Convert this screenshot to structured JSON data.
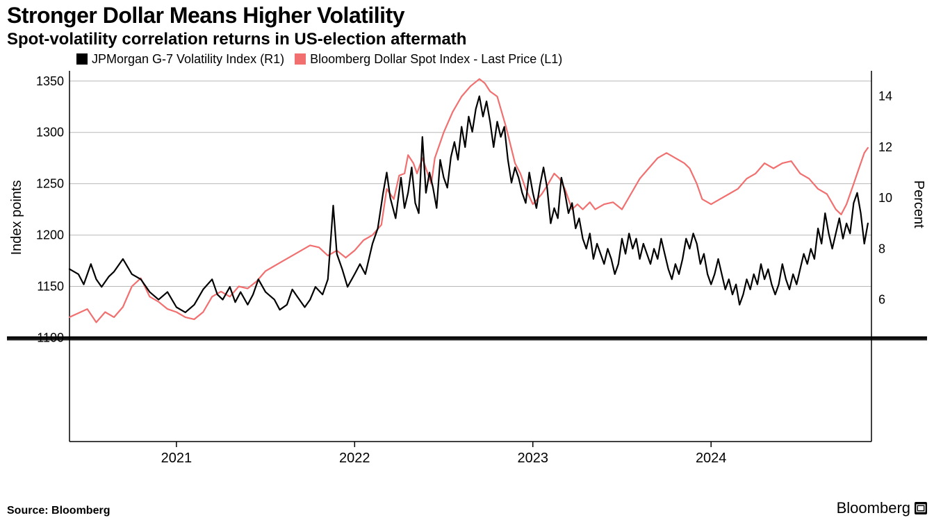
{
  "title": "Stronger Dollar Means Higher Volatility",
  "subtitle": "Spot-volatility correlation returns in US-election aftermath",
  "source": "Source: Bloomberg",
  "brand": "Bloomberg",
  "legend": {
    "series1": {
      "label": "JPMorgan G-7 Volatility Index (R1)",
      "color": "#000000"
    },
    "series2": {
      "label": "Bloomberg Dollar Spot Index - Last Price (L1)",
      "color": "#f26f6f"
    }
  },
  "chart": {
    "type": "line",
    "background_color": "#ffffff",
    "grid_color": "#b8b8b8",
    "divider_color": "#000000",
    "axis_line_color": "#000000",
    "axis_label_color": "#000000",
    "left_axis": {
      "label": "Index points",
      "min": 1100,
      "max": 1360,
      "ticks": [
        1100,
        1150,
        1200,
        1250,
        1300,
        1350
      ],
      "label_fontsize": 20,
      "tick_fontsize": 18
    },
    "right_axis": {
      "label": "Percent",
      "min": 4.5,
      "max": 15,
      "ticks": [
        6,
        8,
        10,
        12,
        14
      ],
      "label_fontsize": 20,
      "tick_fontsize": 18
    },
    "x_axis": {
      "min": 2020.4,
      "max": 2024.9,
      "ticks": [
        2021,
        2022,
        2023,
        2024
      ],
      "tick_fontsize": 20
    },
    "line_width": 2.2,
    "series_l1": {
      "name": "Bloomberg Dollar Spot Index",
      "color": "#f26f6f",
      "axis": "left",
      "points": [
        [
          2020.4,
          1120
        ],
        [
          2020.5,
          1128
        ],
        [
          2020.55,
          1115
        ],
        [
          2020.6,
          1125
        ],
        [
          2020.65,
          1120
        ],
        [
          2020.7,
          1130
        ],
        [
          2020.75,
          1150
        ],
        [
          2020.8,
          1158
        ],
        [
          2020.85,
          1140
        ],
        [
          2020.9,
          1135
        ],
        [
          2020.95,
          1128
        ],
        [
          2021.0,
          1125
        ],
        [
          2021.05,
          1120
        ],
        [
          2021.1,
          1118
        ],
        [
          2021.15,
          1125
        ],
        [
          2021.2,
          1140
        ],
        [
          2021.25,
          1145
        ],
        [
          2021.3,
          1140
        ],
        [
          2021.35,
          1150
        ],
        [
          2021.4,
          1148
        ],
        [
          2021.45,
          1155
        ],
        [
          2021.5,
          1165
        ],
        [
          2021.55,
          1170
        ],
        [
          2021.6,
          1175
        ],
        [
          2021.65,
          1180
        ],
        [
          2021.7,
          1185
        ],
        [
          2021.75,
          1190
        ],
        [
          2021.8,
          1188
        ],
        [
          2021.85,
          1180
        ],
        [
          2021.9,
          1185
        ],
        [
          2021.95,
          1178
        ],
        [
          2022.0,
          1185
        ],
        [
          2022.05,
          1195
        ],
        [
          2022.1,
          1200
        ],
        [
          2022.15,
          1210
        ],
        [
          2022.18,
          1245
        ],
        [
          2022.22,
          1235
        ],
        [
          2022.25,
          1258
        ],
        [
          2022.28,
          1260
        ],
        [
          2022.3,
          1278
        ],
        [
          2022.33,
          1270
        ],
        [
          2022.35,
          1260
        ],
        [
          2022.38,
          1275
        ],
        [
          2022.4,
          1265
        ],
        [
          2022.43,
          1250
        ],
        [
          2022.45,
          1275
        ],
        [
          2022.48,
          1290
        ],
        [
          2022.5,
          1300
        ],
        [
          2022.55,
          1320
        ],
        [
          2022.6,
          1335
        ],
        [
          2022.65,
          1345
        ],
        [
          2022.7,
          1352
        ],
        [
          2022.73,
          1348
        ],
        [
          2022.76,
          1340
        ],
        [
          2022.8,
          1335
        ],
        [
          2022.85,
          1305
        ],
        [
          2022.9,
          1270
        ],
        [
          2022.93,
          1260
        ],
        [
          2022.96,
          1245
        ],
        [
          2023.0,
          1230
        ],
        [
          2023.05,
          1240
        ],
        [
          2023.08,
          1248
        ],
        [
          2023.12,
          1260
        ],
        [
          2023.15,
          1255
        ],
        [
          2023.18,
          1245
        ],
        [
          2023.22,
          1225
        ],
        [
          2023.25,
          1230
        ],
        [
          2023.28,
          1225
        ],
        [
          2023.32,
          1232
        ],
        [
          2023.35,
          1225
        ],
        [
          2023.4,
          1230
        ],
        [
          2023.45,
          1232
        ],
        [
          2023.5,
          1225
        ],
        [
          2023.55,
          1240
        ],
        [
          2023.6,
          1255
        ],
        [
          2023.65,
          1265
        ],
        [
          2023.7,
          1275
        ],
        [
          2023.75,
          1280
        ],
        [
          2023.8,
          1275
        ],
        [
          2023.85,
          1270
        ],
        [
          2023.88,
          1265
        ],
        [
          2023.92,
          1250
        ],
        [
          2023.95,
          1235
        ],
        [
          2024.0,
          1230
        ],
        [
          2024.05,
          1235
        ],
        [
          2024.1,
          1240
        ],
        [
          2024.15,
          1245
        ],
        [
          2024.2,
          1255
        ],
        [
          2024.25,
          1260
        ],
        [
          2024.3,
          1270
        ],
        [
          2024.35,
          1265
        ],
        [
          2024.4,
          1270
        ],
        [
          2024.45,
          1272
        ],
        [
          2024.5,
          1260
        ],
        [
          2024.55,
          1255
        ],
        [
          2024.6,
          1245
        ],
        [
          2024.65,
          1240
        ],
        [
          2024.7,
          1225
        ],
        [
          2024.73,
          1220
        ],
        [
          2024.76,
          1230
        ],
        [
          2024.8,
          1250
        ],
        [
          2024.83,
          1265
        ],
        [
          2024.86,
          1280
        ],
        [
          2024.88,
          1285
        ]
      ]
    },
    "series_r1": {
      "name": "JPMorgan G-7 Volatility Index",
      "color": "#000000",
      "axis": "right",
      "points": [
        [
          2020.4,
          7.2
        ],
        [
          2020.45,
          7.0
        ],
        [
          2020.48,
          6.6
        ],
        [
          2020.52,
          7.4
        ],
        [
          2020.55,
          6.8
        ],
        [
          2020.58,
          6.5
        ],
        [
          2020.62,
          6.9
        ],
        [
          2020.65,
          7.1
        ],
        [
          2020.7,
          7.6
        ],
        [
          2020.75,
          7.0
        ],
        [
          2020.8,
          6.8
        ],
        [
          2020.85,
          6.3
        ],
        [
          2020.9,
          6.0
        ],
        [
          2020.95,
          6.3
        ],
        [
          2021.0,
          5.7
        ],
        [
          2021.05,
          5.5
        ],
        [
          2021.1,
          5.8
        ],
        [
          2021.15,
          6.4
        ],
        [
          2021.2,
          6.8
        ],
        [
          2021.23,
          6.2
        ],
        [
          2021.26,
          6.0
        ],
        [
          2021.3,
          6.5
        ],
        [
          2021.33,
          5.9
        ],
        [
          2021.36,
          6.3
        ],
        [
          2021.4,
          5.8
        ],
        [
          2021.43,
          6.2
        ],
        [
          2021.46,
          6.8
        ],
        [
          2021.5,
          6.3
        ],
        [
          2021.55,
          6.0
        ],
        [
          2021.58,
          5.6
        ],
        [
          2021.62,
          5.8
        ],
        [
          2021.65,
          6.4
        ],
        [
          2021.68,
          6.1
        ],
        [
          2021.72,
          5.7
        ],
        [
          2021.75,
          6.0
        ],
        [
          2021.78,
          6.5
        ],
        [
          2021.82,
          6.2
        ],
        [
          2021.85,
          6.8
        ],
        [
          2021.88,
          9.7
        ],
        [
          2021.9,
          7.8
        ],
        [
          2021.93,
          7.2
        ],
        [
          2021.96,
          6.5
        ],
        [
          2022.0,
          7.0
        ],
        [
          2022.03,
          7.4
        ],
        [
          2022.06,
          7.0
        ],
        [
          2022.1,
          8.2
        ],
        [
          2022.13,
          8.8
        ],
        [
          2022.16,
          10.2
        ],
        [
          2022.18,
          11.0
        ],
        [
          2022.2,
          10.0
        ],
        [
          2022.23,
          9.2
        ],
        [
          2022.26,
          10.8
        ],
        [
          2022.28,
          9.6
        ],
        [
          2022.3,
          10.2
        ],
        [
          2022.32,
          11.2
        ],
        [
          2022.34,
          9.8
        ],
        [
          2022.36,
          9.4
        ],
        [
          2022.38,
          12.4
        ],
        [
          2022.4,
          10.2
        ],
        [
          2022.42,
          11.0
        ],
        [
          2022.44,
          10.4
        ],
        [
          2022.46,
          9.6
        ],
        [
          2022.48,
          11.5
        ],
        [
          2022.5,
          10.8
        ],
        [
          2022.52,
          10.4
        ],
        [
          2022.54,
          11.6
        ],
        [
          2022.56,
          12.2
        ],
        [
          2022.58,
          11.5
        ],
        [
          2022.6,
          12.8
        ],
        [
          2022.62,
          12.0
        ],
        [
          2022.64,
          13.2
        ],
        [
          2022.66,
          12.6
        ],
        [
          2022.68,
          13.5
        ],
        [
          2022.7,
          14.0
        ],
        [
          2022.72,
          13.2
        ],
        [
          2022.74,
          13.8
        ],
        [
          2022.76,
          13.0
        ],
        [
          2022.78,
          12.0
        ],
        [
          2022.8,
          13.0
        ],
        [
          2022.82,
          12.4
        ],
        [
          2022.84,
          12.8
        ],
        [
          2022.86,
          11.5
        ],
        [
          2022.88,
          10.6
        ],
        [
          2022.9,
          11.2
        ],
        [
          2022.92,
          10.8
        ],
        [
          2022.94,
          10.2
        ],
        [
          2022.96,
          9.8
        ],
        [
          2022.98,
          11.0
        ],
        [
          2023.0,
          10.2
        ],
        [
          2023.02,
          9.6
        ],
        [
          2023.04,
          10.5
        ],
        [
          2023.06,
          11.2
        ],
        [
          2023.08,
          10.4
        ],
        [
          2023.1,
          9.0
        ],
        [
          2023.12,
          9.6
        ],
        [
          2023.14,
          9.2
        ],
        [
          2023.16,
          10.8
        ],
        [
          2023.18,
          10.2
        ],
        [
          2023.2,
          9.4
        ],
        [
          2023.22,
          9.8
        ],
        [
          2023.24,
          8.8
        ],
        [
          2023.26,
          9.2
        ],
        [
          2023.28,
          8.4
        ],
        [
          2023.3,
          8.0
        ],
        [
          2023.32,
          8.6
        ],
        [
          2023.34,
          7.6
        ],
        [
          2023.36,
          8.2
        ],
        [
          2023.38,
          7.8
        ],
        [
          2023.4,
          7.4
        ],
        [
          2023.42,
          8.0
        ],
        [
          2023.44,
          7.6
        ],
        [
          2023.46,
          7.0
        ],
        [
          2023.48,
          7.4
        ],
        [
          2023.5,
          8.4
        ],
        [
          2023.52,
          7.8
        ],
        [
          2023.54,
          8.6
        ],
        [
          2023.56,
          8.0
        ],
        [
          2023.58,
          8.4
        ],
        [
          2023.6,
          7.6
        ],
        [
          2023.62,
          8.2
        ],
        [
          2023.64,
          7.8
        ],
        [
          2023.66,
          7.4
        ],
        [
          2023.68,
          8.0
        ],
        [
          2023.7,
          7.6
        ],
        [
          2023.72,
          8.4
        ],
        [
          2023.74,
          7.8
        ],
        [
          2023.76,
          7.2
        ],
        [
          2023.78,
          6.8
        ],
        [
          2023.8,
          7.4
        ],
        [
          2023.82,
          7.0
        ],
        [
          2023.84,
          7.6
        ],
        [
          2023.86,
          8.4
        ],
        [
          2023.88,
          8.0
        ],
        [
          2023.9,
          8.6
        ],
        [
          2023.92,
          8.2
        ],
        [
          2023.94,
          7.4
        ],
        [
          2023.96,
          7.8
        ],
        [
          2023.98,
          7.0
        ],
        [
          2024.0,
          6.6
        ],
        [
          2024.02,
          7.0
        ],
        [
          2024.04,
          7.6
        ],
        [
          2024.06,
          7.0
        ],
        [
          2024.08,
          6.4
        ],
        [
          2024.1,
          6.8
        ],
        [
          2024.12,
          6.2
        ],
        [
          2024.14,
          6.6
        ],
        [
          2024.16,
          5.8
        ],
        [
          2024.18,
          6.2
        ],
        [
          2024.2,
          6.8
        ],
        [
          2024.22,
          6.4
        ],
        [
          2024.24,
          7.0
        ],
        [
          2024.26,
          6.6
        ],
        [
          2024.28,
          7.4
        ],
        [
          2024.3,
          6.8
        ],
        [
          2024.32,
          7.2
        ],
        [
          2024.34,
          6.6
        ],
        [
          2024.36,
          6.2
        ],
        [
          2024.38,
          6.6
        ],
        [
          2024.4,
          7.4
        ],
        [
          2024.42,
          6.8
        ],
        [
          2024.44,
          6.4
        ],
        [
          2024.46,
          7.0
        ],
        [
          2024.48,
          6.6
        ],
        [
          2024.5,
          7.2
        ],
        [
          2024.52,
          7.8
        ],
        [
          2024.54,
          7.4
        ],
        [
          2024.56,
          8.0
        ],
        [
          2024.58,
          7.6
        ],
        [
          2024.6,
          8.8
        ],
        [
          2024.62,
          8.2
        ],
        [
          2024.64,
          9.4
        ],
        [
          2024.66,
          8.6
        ],
        [
          2024.68,
          8.0
        ],
        [
          2024.7,
          8.6
        ],
        [
          2024.72,
          9.2
        ],
        [
          2024.74,
          8.4
        ],
        [
          2024.76,
          9.0
        ],
        [
          2024.78,
          8.6
        ],
        [
          2024.8,
          9.8
        ],
        [
          2024.82,
          10.2
        ],
        [
          2024.84,
          9.4
        ],
        [
          2024.86,
          8.2
        ],
        [
          2024.88,
          9.0
        ]
      ]
    }
  }
}
